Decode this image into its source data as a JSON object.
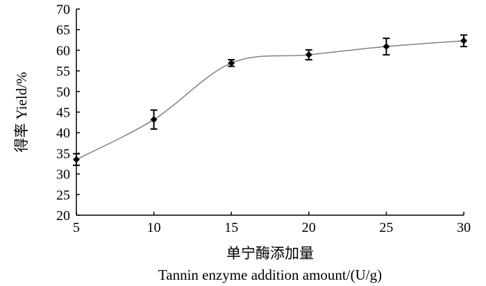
{
  "chart_data": {
    "type": "line",
    "title": "",
    "xlabel_cn": "单宁酶添加量",
    "xlabel_en": "Tannin enzyme addition amount/(U/g)",
    "ylabel": "得率 Yield/%",
    "xlim": [
      5,
      30
    ],
    "ylim": [
      20,
      70
    ],
    "x_ticks": [
      5,
      10,
      15,
      20,
      25,
      30
    ],
    "y_ticks": [
      20,
      25,
      30,
      35,
      40,
      45,
      50,
      55,
      60,
      65,
      70
    ],
    "grid": false,
    "legend": "none",
    "line_color": "#808080",
    "marker_color": "#000000",
    "series": [
      {
        "x": [
          5,
          10,
          15,
          20,
          25,
          30
        ],
        "y": [
          33.5,
          43.2,
          56.9,
          58.9,
          60.9,
          62.3
        ],
        "error": [
          1.4,
          2.3,
          0.8,
          1.2,
          2.0,
          1.4
        ]
      }
    ]
  }
}
